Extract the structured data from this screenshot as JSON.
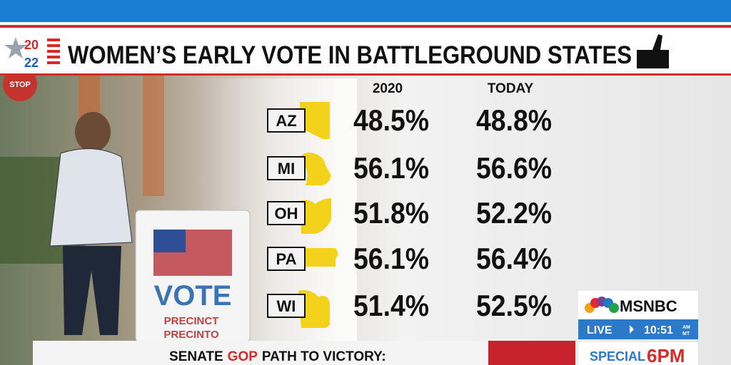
{
  "header": {
    "logo_top": "20",
    "logo_bottom": "22",
    "title": "WOMEN’S EARLY VOTE IN BATTLEGROUND STATES"
  },
  "table": {
    "columns": [
      "2020",
      "TODAY"
    ],
    "rows": [
      [
        "AZ",
        "48.5%",
        "48.8%"
      ],
      [
        "MI",
        "56.1%",
        "56.6%"
      ],
      [
        "OH",
        "51.8%",
        "52.2%"
      ],
      [
        "PA",
        "56.1%",
        "56.4%"
      ],
      [
        "WI",
        "51.4%",
        "52.5%"
      ]
    ]
  },
  "background": {
    "stop": "STOP",
    "sign": [
      "VOTE",
      "PRECINCT",
      "PRECINTO"
    ]
  },
  "lower_third": {
    "prefix": "SENATE",
    "party": "GOP",
    "suffix": "PATH TO VICTORY:"
  },
  "network": {
    "logo": "MSNBC",
    "live": "LIVE",
    "time": "10:51",
    "am": "AM",
    "zone": "MT",
    "special": "SPECIAL",
    "hour": "6PM"
  }
}
